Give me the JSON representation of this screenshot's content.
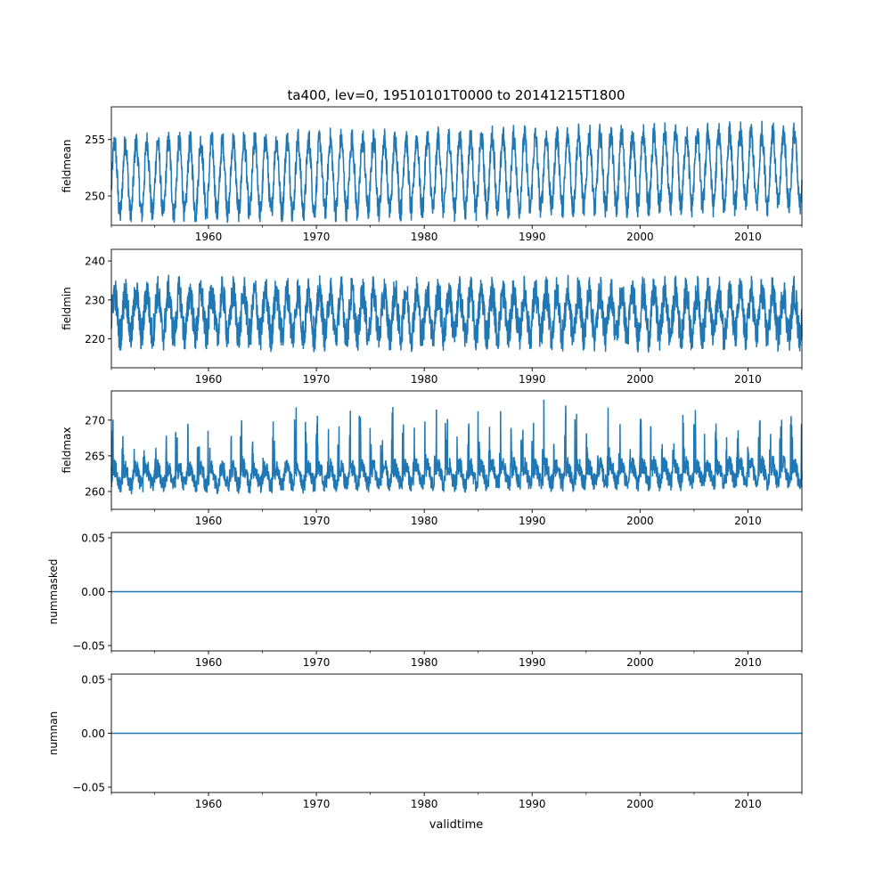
{
  "chart_data": {
    "type": "line",
    "title": "ta400, lev=0, 19510101T0000 to 20141215T1800",
    "xlabel": "validtime",
    "xlim": [
      1951.0,
      2015.0
    ],
    "x_ticks": [
      1960,
      1970,
      1980,
      1990,
      2000,
      2010
    ],
    "x_minor_ticks": [
      1955,
      1965,
      1975,
      1985,
      1995,
      2005,
      2015
    ],
    "series_color": "#1f77b4",
    "panels": [
      {
        "ylabel": "fieldmean",
        "ylim": [
          247.4,
          257.9
        ],
        "y_ticks": [
          250,
          255
        ],
        "y_tick_labels": [
          "250",
          "255"
        ],
        "model": {
          "mean": 252.0,
          "seasonal_amplitude": 3.2,
          "noise": 1.1,
          "trend_per_decade": 0.15,
          "spikes": 0
        }
      },
      {
        "ylabel": "fieldmin",
        "ylim": [
          212.6,
          243.0
        ],
        "y_ticks": [
          220,
          230,
          240
        ],
        "y_tick_labels": [
          "220",
          "230",
          "240"
        ],
        "model": {
          "mean": 226.5,
          "seasonal_amplitude": 5.5,
          "noise": 4.5,
          "trend_per_decade": 0.0,
          "spikes": 0
        }
      },
      {
        "ylabel": "fieldmax",
        "ylim": [
          257.5,
          274.1
        ],
        "y_ticks": [
          260,
          265,
          270
        ],
        "y_tick_labels": [
          "260",
          "265",
          "270"
        ],
        "model": {
          "mean": 262.3,
          "seasonal_amplitude": 1.2,
          "noise": 1.3,
          "trend_per_decade": 0.1,
          "spikes": 1
        }
      },
      {
        "ylabel": "nummasked",
        "ylim": [
          -0.055,
          0.055
        ],
        "y_ticks": [
          -0.05,
          0.0,
          0.05
        ],
        "y_tick_labels": [
          "−0.05",
          "0.00",
          "0.05"
        ],
        "model": {
          "constant": 0.0
        }
      },
      {
        "ylabel": "numnan",
        "ylim": [
          -0.055,
          0.055
        ],
        "y_ticks": [
          -0.05,
          0.0,
          0.05
        ],
        "y_tick_labels": [
          "−0.05",
          "0.00",
          "0.05"
        ],
        "model": {
          "constant": 0.0
        }
      }
    ]
  }
}
